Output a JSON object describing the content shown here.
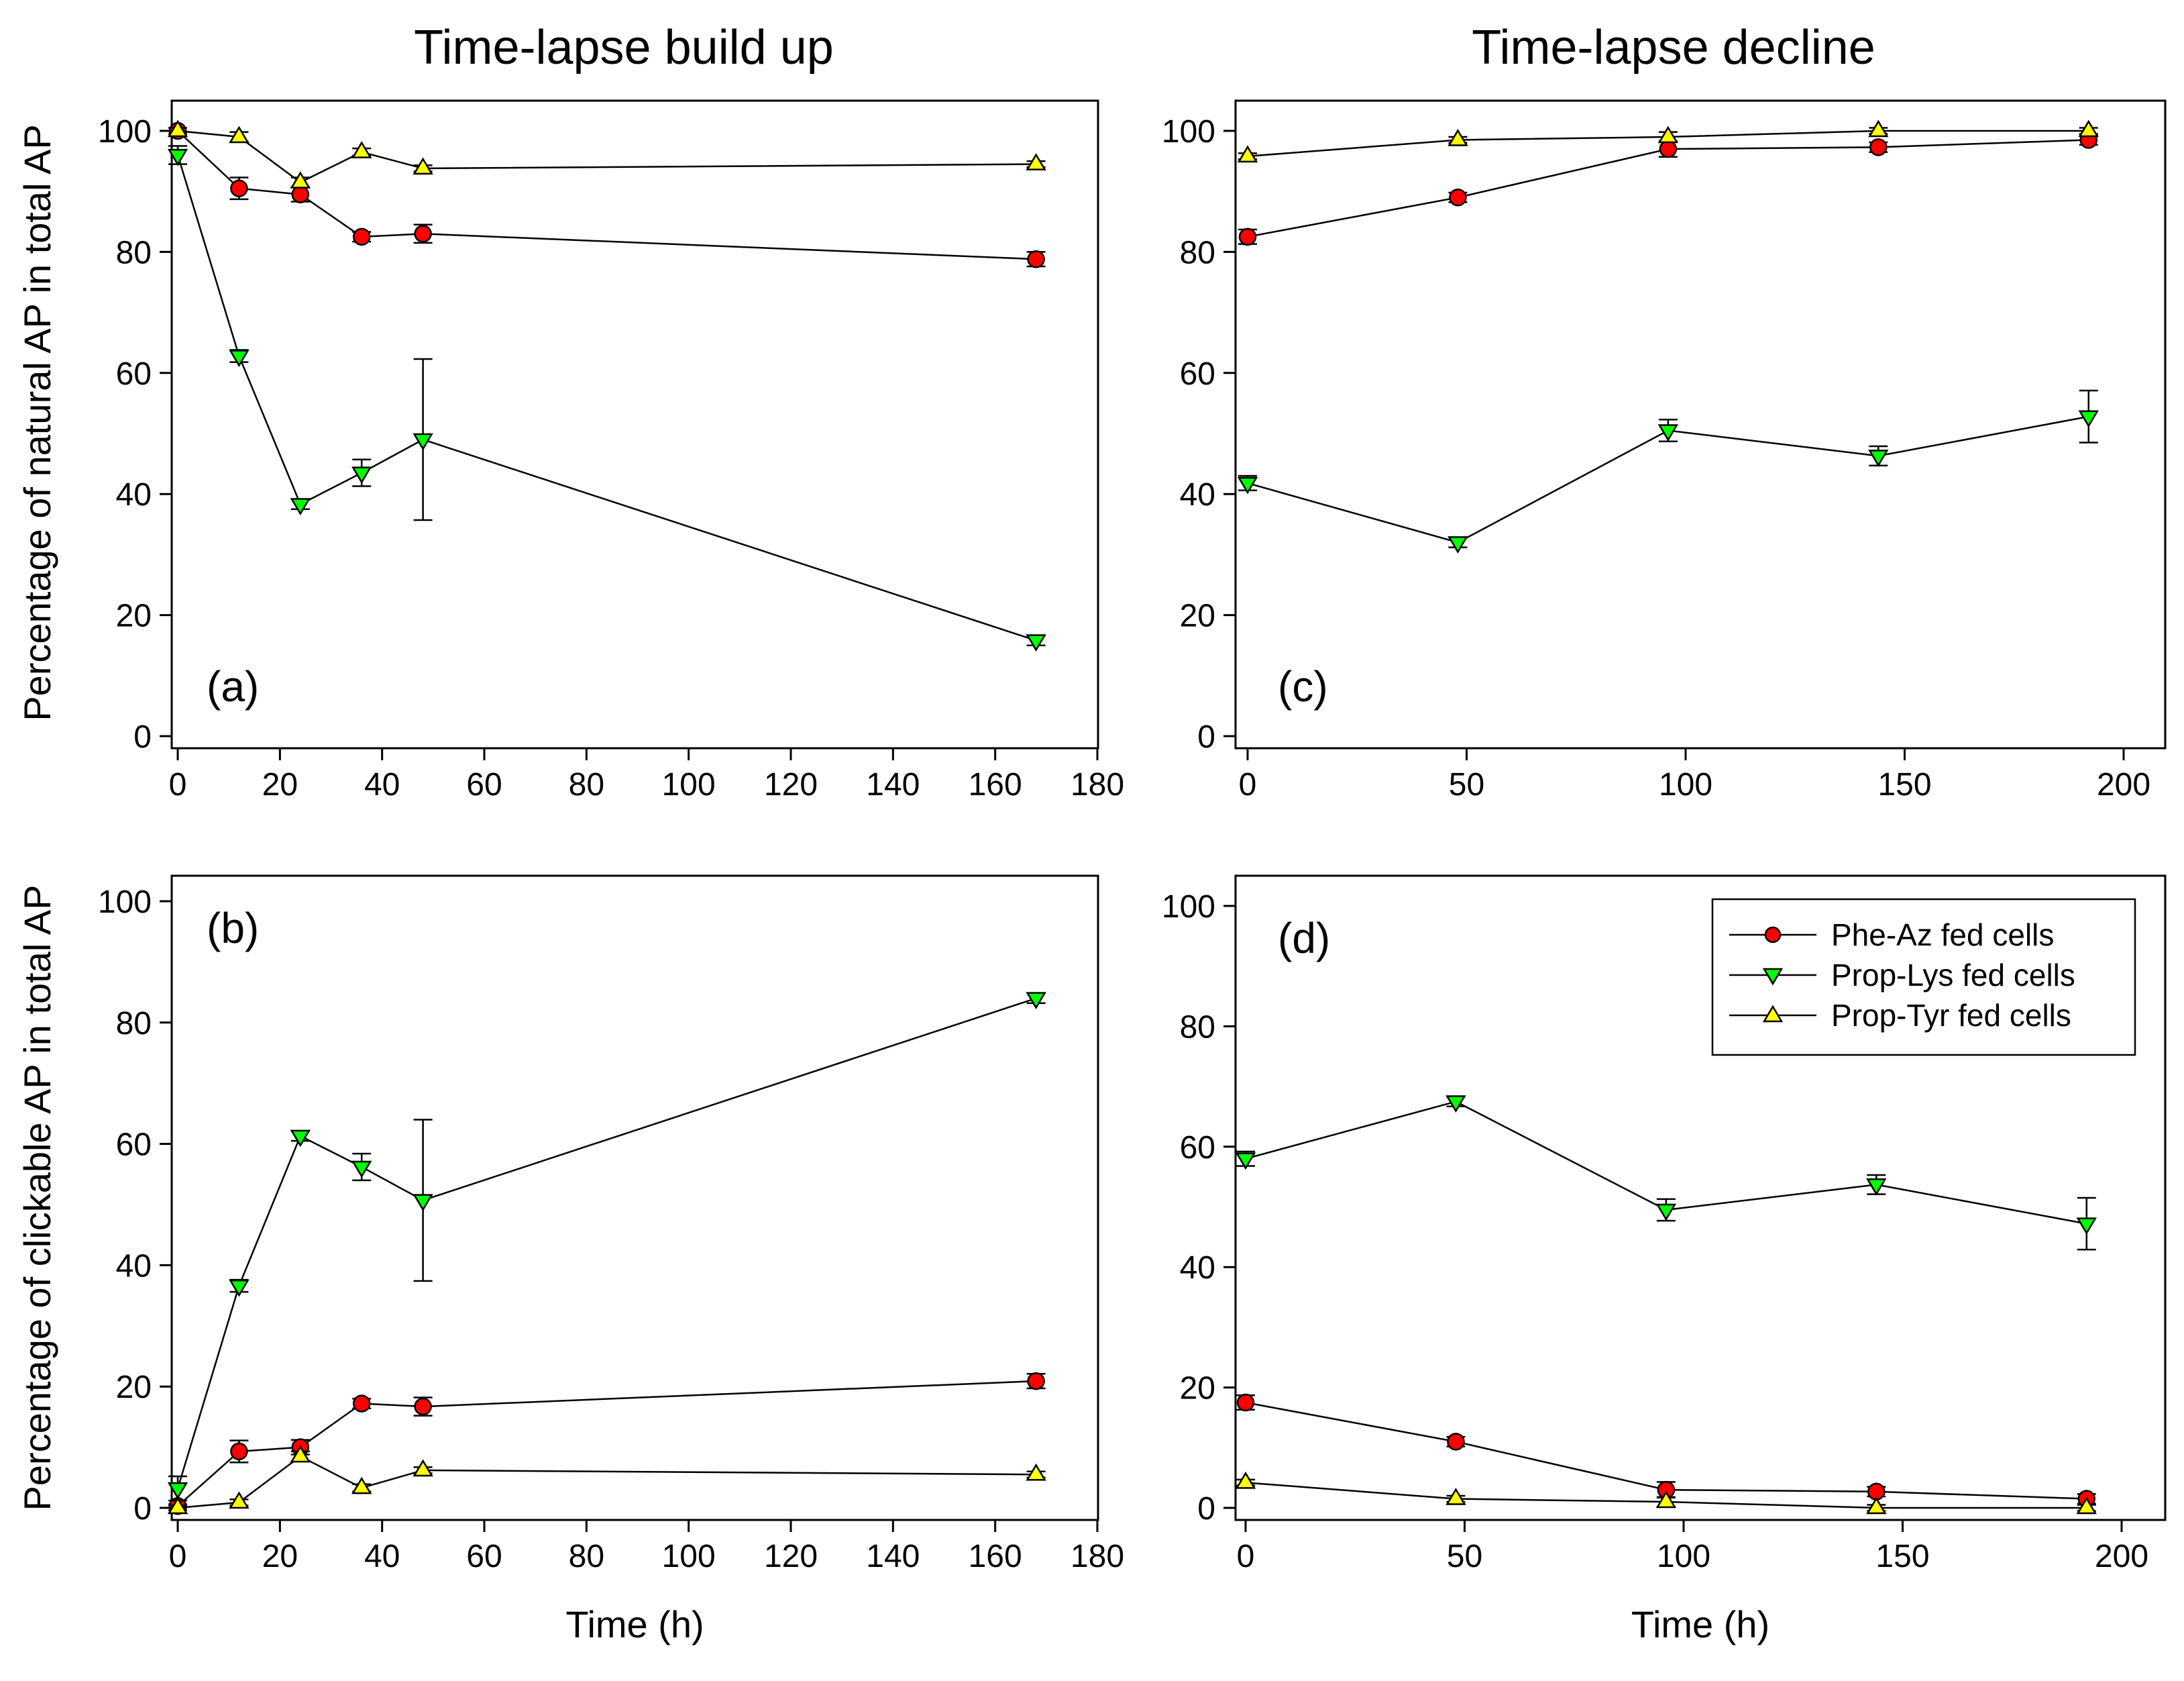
{
  "column_titles": [
    "Time-lapse build up",
    "Time-lapse decline"
  ],
  "y_axis_titles": [
    "Percentage of natural AP in total AP",
    "Percentage of clickable AP in total AP"
  ],
  "legend": {
    "entries": [
      "Phe-Az fed cells",
      "Prop-Lys fed cells",
      "Prop-Tyr fed cells"
    ]
  },
  "series_styles": [
    {
      "name": "Phe-Az fed cells",
      "marker": "circle",
      "color": "#ff0000"
    },
    {
      "name": "Prop-Lys fed cells",
      "marker": "triangle-down",
      "color": "#00ff00"
    },
    {
      "name": "Prop-Tyr fed cells",
      "marker": "triangle-up",
      "color": "#ffff00"
    }
  ],
  "chart_data": [
    {
      "id": "a",
      "type": "line",
      "label": "(a)",
      "title": "Time-lapse build up",
      "xlabel": "",
      "ylabel": "Percentage of natural AP in total AP",
      "xlim": [
        0,
        180
      ],
      "ylim": [
        0,
        100
      ],
      "xticks": [
        0,
        20,
        40,
        60,
        80,
        100,
        120,
        140,
        160,
        180
      ],
      "yticks": [
        0,
        20,
        40,
        60,
        80,
        100
      ],
      "x": [
        0,
        12,
        24,
        36,
        48,
        168
      ],
      "series": [
        {
          "name": "Phe-Az fed cells",
          "values": [
            100,
            90.5,
            89.5,
            82.5,
            83,
            78.8
          ],
          "errors": [
            0,
            1.8,
            1.2,
            0.8,
            1.5,
            1.2
          ]
        },
        {
          "name": "Prop-Lys fed cells",
          "values": [
            96,
            62.8,
            38.3,
            43.5,
            49,
            15.8
          ],
          "errors": [
            1.5,
            1,
            0.8,
            2.2,
            13.3,
            0.8
          ]
        },
        {
          "name": "Prop-Tyr fed cells",
          "values": [
            100,
            99,
            91.5,
            96.5,
            93.8,
            94.5
          ],
          "errors": [
            0.5,
            0.8,
            0.8,
            0.6,
            0.5,
            0.5
          ]
        }
      ]
    },
    {
      "id": "b",
      "type": "line",
      "label": "(b)",
      "title": "",
      "xlabel": "Time (h)",
      "ylabel": "Percentage of clickable AP in total AP",
      "xlim": [
        0,
        180
      ],
      "ylim": [
        0,
        100
      ],
      "xticks": [
        0,
        20,
        40,
        60,
        80,
        100,
        120,
        140,
        160,
        180
      ],
      "yticks": [
        0,
        20,
        40,
        60,
        80,
        100
      ],
      "x": [
        0,
        12,
        24,
        36,
        48,
        168
      ],
      "series": [
        {
          "name": "Phe-Az fed cells",
          "values": [
            0.3,
            9.3,
            10,
            17.2,
            16.7,
            20.9
          ],
          "errors": [
            0.3,
            1.8,
            1.2,
            0.8,
            1.5,
            1.2
          ]
        },
        {
          "name": "Prop-Lys fed cells",
          "values": [
            3.2,
            36.6,
            61.3,
            56.2,
            50.7,
            84
          ],
          "errors": [
            2,
            1,
            0.8,
            2.2,
            13.3,
            0.8
          ]
        },
        {
          "name": "Prop-Tyr fed cells",
          "values": [
            0,
            0.9,
            8.5,
            3.3,
            6.2,
            5.5
          ],
          "errors": [
            0.4,
            0.5,
            0.8,
            0.6,
            0.5,
            0.5
          ]
        }
      ]
    },
    {
      "id": "c",
      "type": "line",
      "label": "(c)",
      "title": "Time-lapse decline",
      "xlabel": "",
      "ylabel": "",
      "xlim": [
        0,
        200
      ],
      "ylim": [
        0,
        100
      ],
      "xticks": [
        0,
        50,
        100,
        150,
        200
      ],
      "yticks": [
        0,
        20,
        40,
        60,
        80,
        100
      ],
      "x": [
        0,
        48,
        96,
        144,
        192
      ],
      "series": [
        {
          "name": "Phe-Az fed cells",
          "values": [
            82.5,
            89,
            97,
            97.3,
            98.5
          ],
          "errors": [
            1.2,
            0.8,
            1.3,
            0.8,
            0.8
          ]
        },
        {
          "name": "Prop-Lys fed cells",
          "values": [
            41.8,
            32,
            50.5,
            46.3,
            52.8
          ],
          "errors": [
            1.2,
            0.8,
            1.8,
            1.6,
            4.3
          ]
        },
        {
          "name": "Prop-Tyr fed cells",
          "values": [
            95.8,
            98.5,
            99,
            100,
            100
          ],
          "errors": [
            0.5,
            0.5,
            0.8,
            0.5,
            0.5
          ]
        }
      ]
    },
    {
      "id": "d",
      "type": "line",
      "label": "(d)",
      "title": "",
      "xlabel": "Time (h)",
      "ylabel": "",
      "xlim": [
        0,
        200
      ],
      "ylim": [
        0,
        100
      ],
      "xticks": [
        0,
        50,
        100,
        150,
        200
      ],
      "yticks": [
        0,
        20,
        40,
        60,
        80,
        100
      ],
      "x": [
        0,
        48,
        96,
        144,
        192
      ],
      "legend": "top-right",
      "series": [
        {
          "name": "Phe-Az fed cells",
          "values": [
            17.5,
            11,
            3,
            2.7,
            1.5
          ],
          "errors": [
            1.2,
            0.8,
            1.3,
            0.8,
            0.8
          ]
        },
        {
          "name": "Prop-Lys fed cells",
          "values": [
            58,
            67.5,
            49.5,
            53.7,
            47.2
          ],
          "errors": [
            1.2,
            0.8,
            1.8,
            1.6,
            4.3
          ]
        },
        {
          "name": "Prop-Tyr fed cells",
          "values": [
            4.2,
            1.5,
            1,
            0,
            0
          ],
          "errors": [
            0.5,
            0.5,
            0.8,
            0.5,
            0.5
          ]
        }
      ]
    }
  ]
}
